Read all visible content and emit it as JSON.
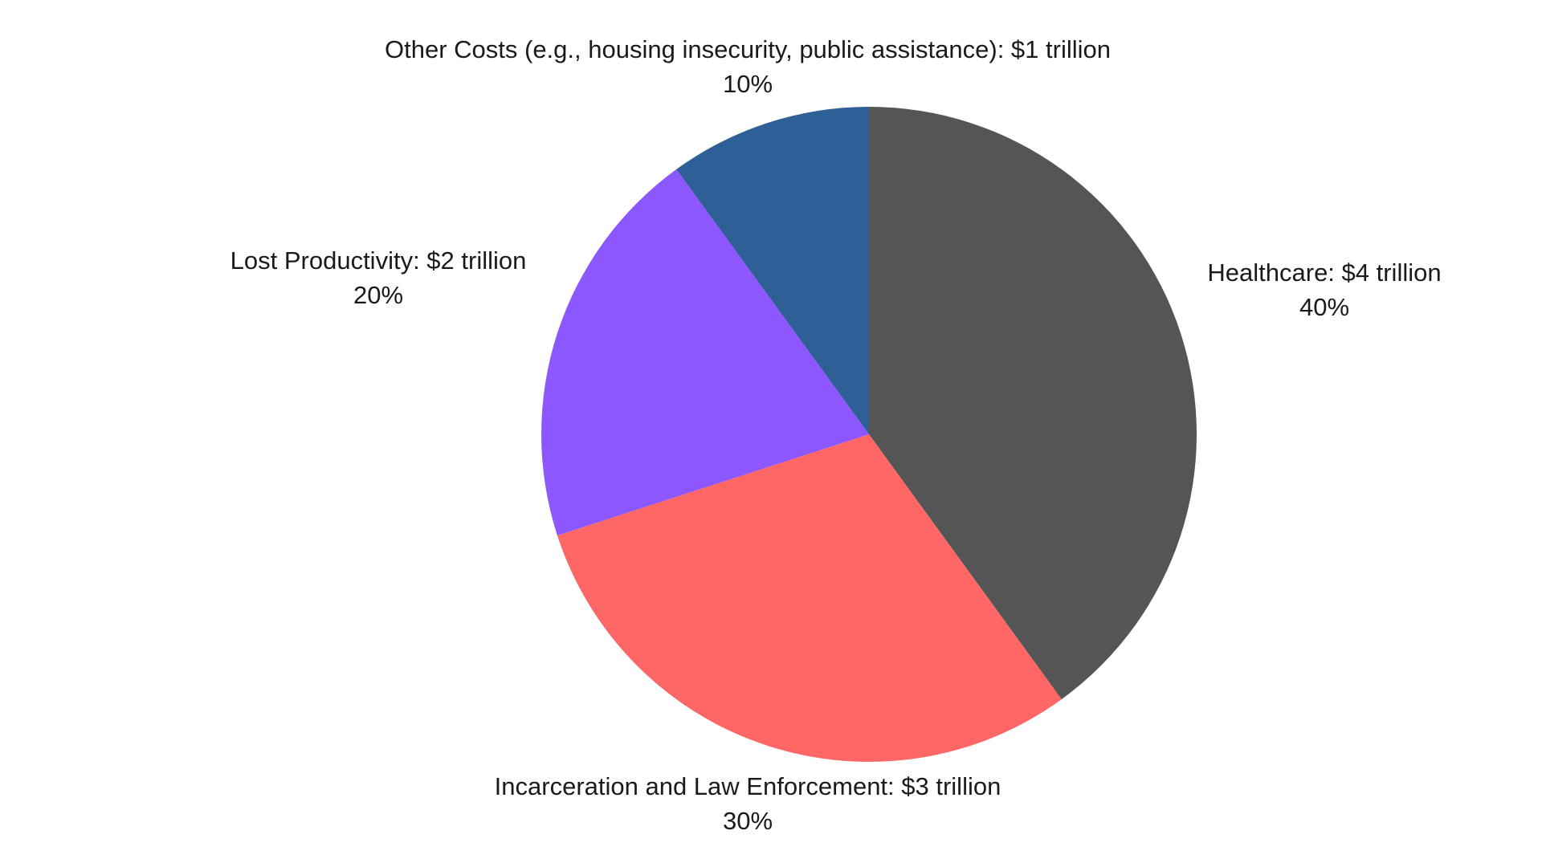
{
  "chart_data": {
    "type": "pie",
    "categories": [
      "Healthcare: $4 trillion",
      "Incarceration and Law Enforcement: $3 trillion",
      "Lost Productivity: $2 trillion",
      "Other Costs (e.g., housing insecurity, public assistance): $1 trillion"
    ],
    "values": [
      40,
      30,
      20,
      10
    ],
    "value_labels": [
      "40%",
      "30%",
      "20%",
      "10%"
    ],
    "colors": [
      "#555555",
      "#ff6666",
      "#8c57ff",
      "#2e5f96"
    ]
  }
}
